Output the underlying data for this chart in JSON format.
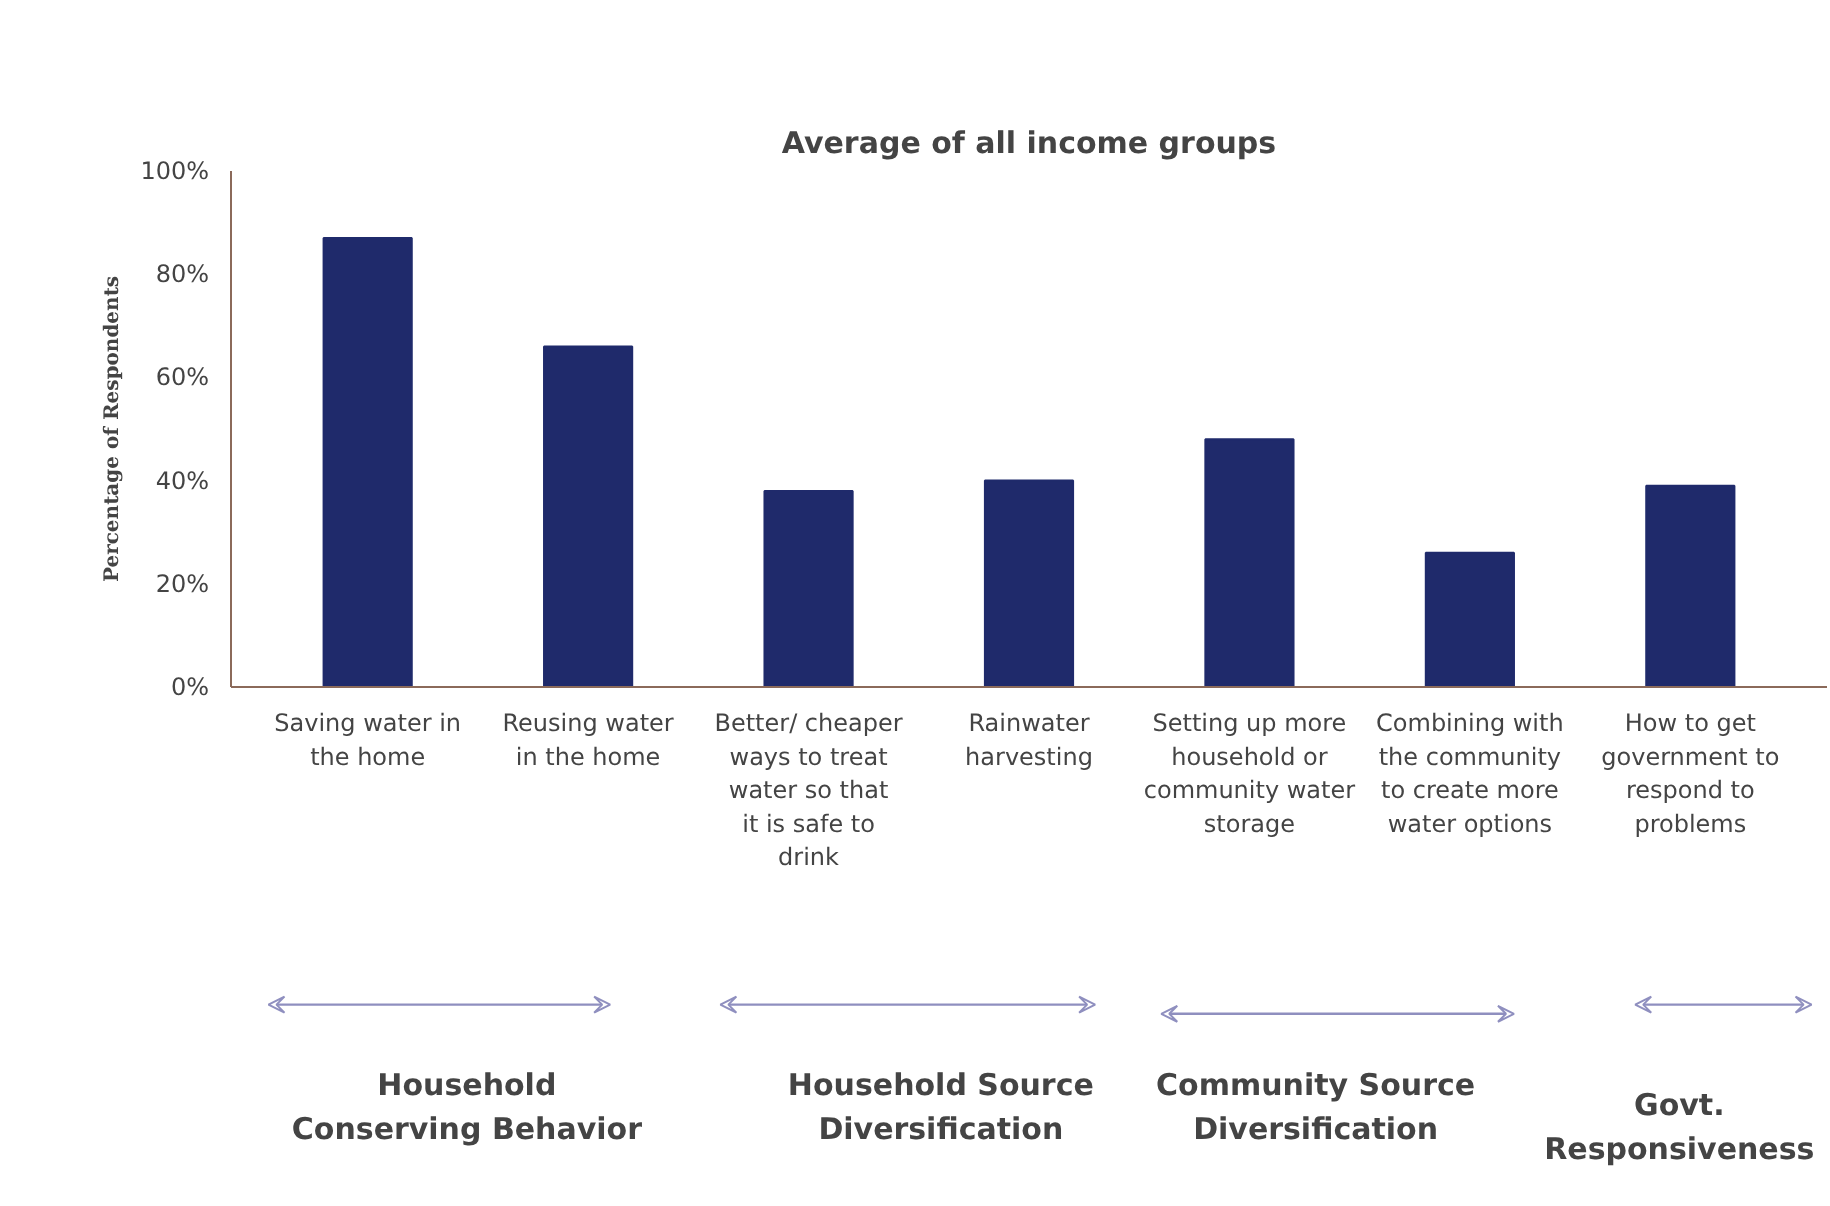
{
  "chart_data": {
    "type": "bar",
    "title": "Average of all income groups",
    "ylabel": "Percentage of Respondents",
    "categories": [
      "Saving water in the home",
      "Reusing water in the home",
      "Better/ cheaper ways to treat water so that it is safe to drink",
      "Rainwater harvesting",
      "Setting up more household or community water storage",
      "Combining with the community to create more water options",
      "How to get government to respond to problems"
    ],
    "values": [
      87,
      66,
      38,
      40,
      48,
      26,
      39
    ],
    "color": "#1f2a6b",
    "ylim": [
      0,
      100
    ],
    "yticks": [
      {
        "value": 0,
        "label": "0%"
      },
      {
        "value": 20,
        "label": "20%"
      },
      {
        "value": 40,
        "label": "40%"
      },
      {
        "value": 60,
        "label": "60%"
      },
      {
        "value": 80,
        "label": "80%"
      },
      {
        "value": 100,
        "label": "100%"
      }
    ],
    "grid": false,
    "annotations": [
      "Household Conserving Behavior",
      "Household Source Diversification",
      "Community Source Diversification",
      "Govt. Responsiveness"
    ]
  }
}
